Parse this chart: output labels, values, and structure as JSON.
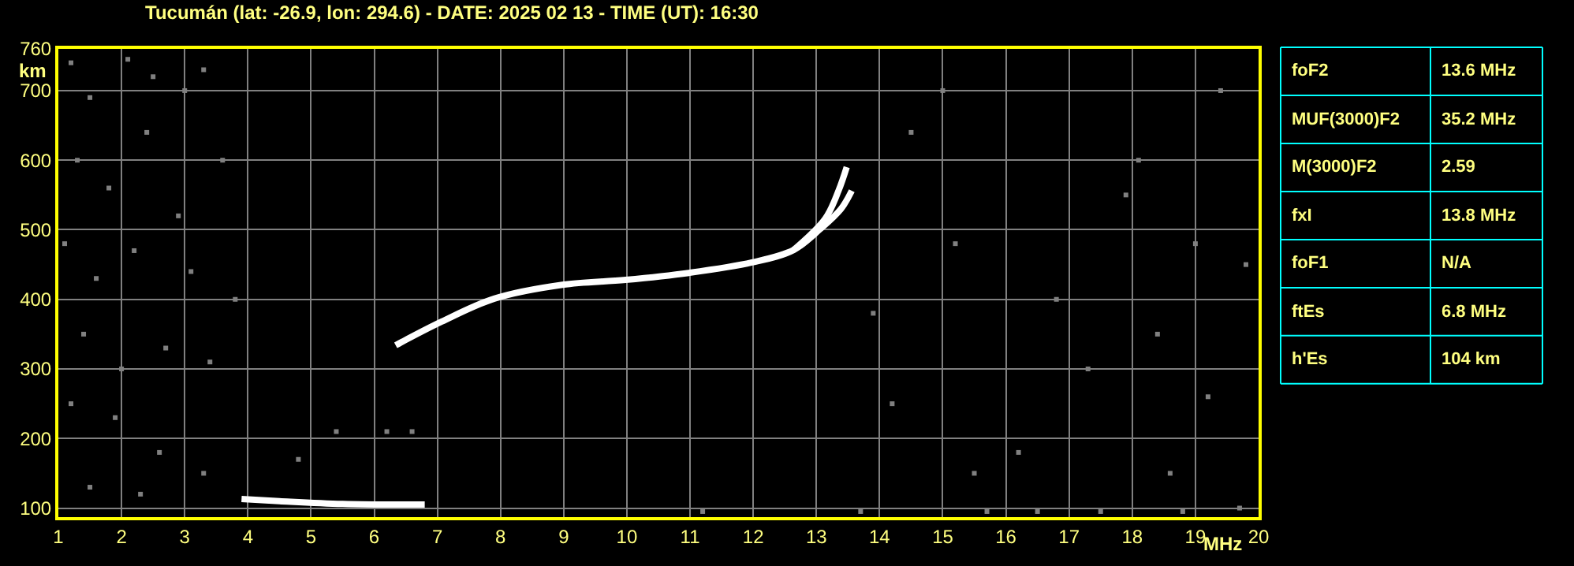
{
  "chart_data": [
    {
      "type": "scatter",
      "title": "Tucumán (lat: -26.9, lon: 294.6) - DATE: 2025 02 13 - TIME (UT): 16:30",
      "xlabel": "MHz",
      "ylabel": "km",
      "xlim": [
        1,
        20
      ],
      "xticks": [
        1,
        2,
        3,
        4,
        5,
        6,
        7,
        8,
        9,
        10,
        11,
        12,
        13,
        14,
        15,
        16,
        17,
        18,
        19,
        20
      ],
      "ylim": [
        87,
        760
      ],
      "yticks": [
        100,
        200,
        300,
        400,
        500,
        600,
        700,
        760
      ],
      "grid": true,
      "marker": "square",
      "series": [
        {
          "type": "line",
          "marker": "none",
          "color": "#ffffff",
          "x": [
            6.34,
            7.07,
            7.9,
            8.98,
            9.98,
            10.98,
            11.98,
            12.64,
            13.06,
            13.39,
            13.56
          ],
          "values": [
            334,
            368,
            401,
            421,
            428,
            438,
            453,
            471,
            501,
            530,
            556
          ]
        },
        {
          "type": "line",
          "marker": "none",
          "color": "#ffffff",
          "x": [
            12.64,
            13.14,
            13.35,
            13.48
          ],
          "values": [
            471,
            516,
            556,
            590
          ]
        },
        {
          "type": "line",
          "marker": "none",
          "color": "#ffffff",
          "x": [
            3.9,
            4.5,
            5.5,
            6.8
          ],
          "values": [
            113,
            110,
            106,
            105
          ]
        },
        {
          "color": "#808080",
          "x": [
            1.2,
            1.5,
            2.1,
            2.5,
            3.0,
            3.3,
            1.3,
            1.8,
            2.4,
            2.9,
            3.6,
            1.1,
            1.6,
            2.2,
            3.1,
            3.8,
            1.4,
            2.0,
            2.7,
            3.4,
            1.2,
            1.9,
            2.6,
            3.3,
            1.5,
            2.3,
            5.4,
            6.6,
            6.2,
            4.8,
            11.2,
            13.7,
            14.5,
            15.0,
            15.5,
            16.2,
            16.8,
            17.3,
            17.9,
            18.1,
            18.6,
            19.0,
            19.4,
            19.8,
            14.2,
            15.7,
            16.5,
            17.5,
            18.8,
            19.7,
            13.9,
            15.2,
            18.4,
            19.2
          ],
          "values": [
            740,
            690,
            745,
            720,
            700,
            730,
            600,
            560,
            640,
            520,
            600,
            480,
            430,
            470,
            440,
            400,
            350,
            300,
            330,
            310,
            250,
            230,
            180,
            150,
            130,
            120,
            210,
            210,
            210,
            170,
            95,
            95,
            640,
            700,
            150,
            180,
            400,
            300,
            550,
            600,
            150,
            480,
            700,
            450,
            250,
            95,
            95,
            95,
            95,
            100,
            380,
            480,
            350,
            260
          ]
        }
      ]
    },
    {
      "type": "other",
      "annotations": [
        "foF2",
        "13.6 MHz",
        "MUF(3000)F2",
        "35.2 MHz",
        "M(3000)F2",
        "2.59",
        "fxI",
        "13.8 MHz",
        "foF1",
        "N/A",
        "ftEs",
        "6.8 MHz",
        "h'Es",
        "104 km"
      ]
    }
  ]
}
